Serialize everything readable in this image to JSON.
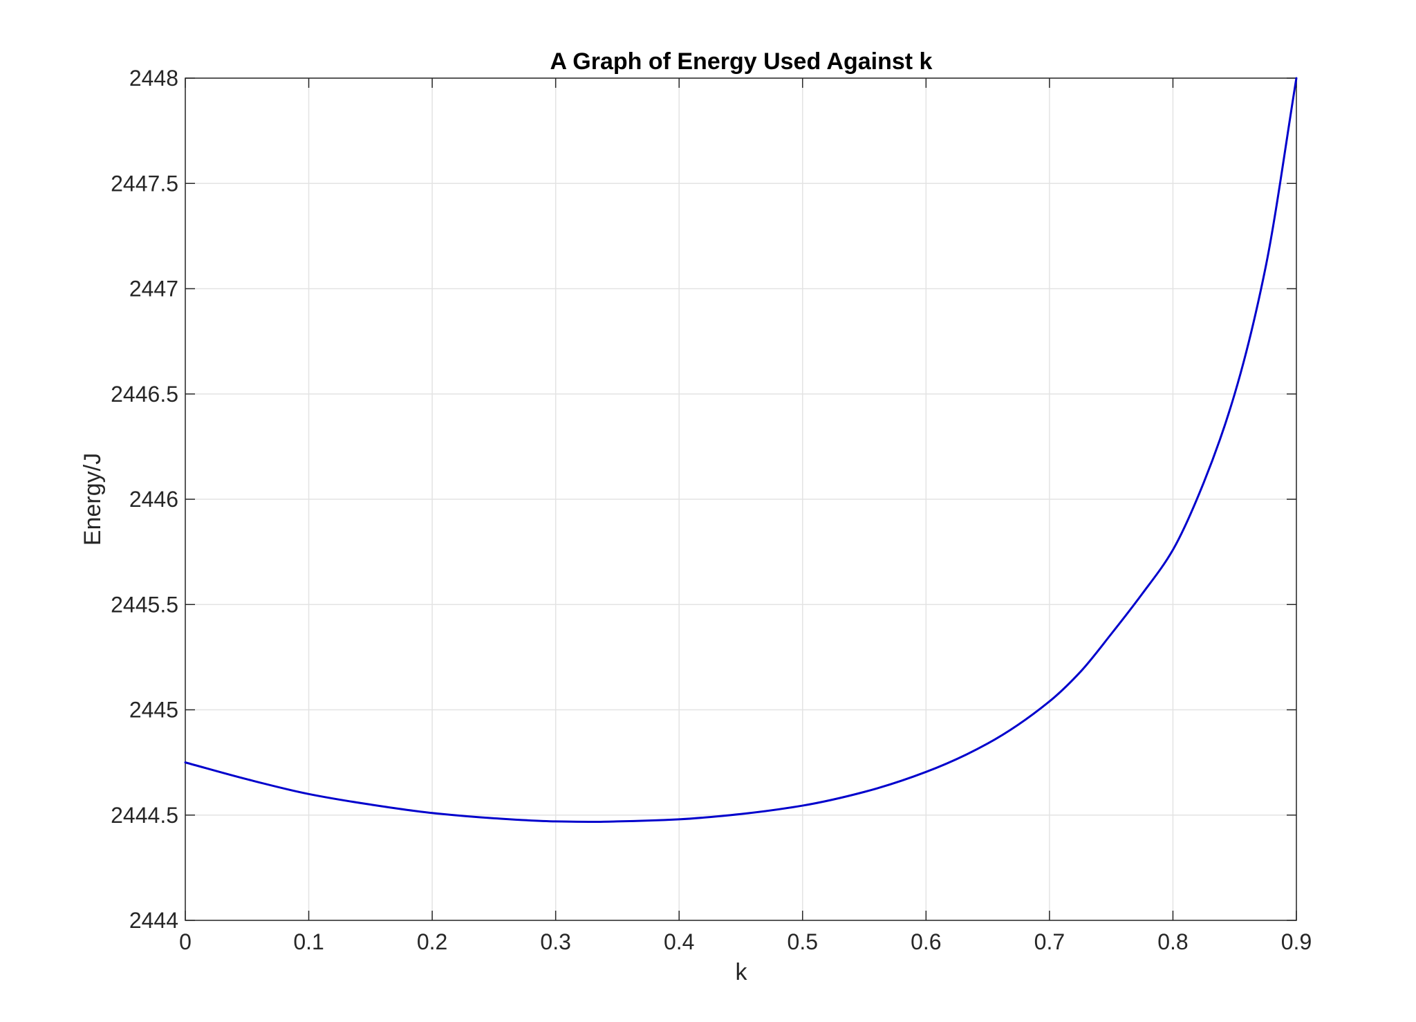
{
  "chart_data": {
    "type": "line",
    "title": "A Graph of Energy Used Against k",
    "xlabel": "k",
    "ylabel": "Energy/J",
    "xlim": [
      0,
      0.9
    ],
    "ylim": [
      2444,
      2448
    ],
    "grid": true,
    "x_ticks": [
      "0",
      "0.1",
      "0.2",
      "0.3",
      "0.4",
      "0.5",
      "0.6",
      "0.7",
      "0.8",
      "0.9"
    ],
    "y_ticks": [
      "2444",
      "2444.5",
      "2445",
      "2445.5",
      "2446",
      "2446.5",
      "2447",
      "2447.5",
      "2448"
    ],
    "series": [
      {
        "color": "#0000cc",
        "x": [
          0,
          0.05,
          0.1,
          0.15,
          0.2,
          0.25,
          0.3,
          0.33,
          0.35,
          0.4,
          0.45,
          0.5,
          0.55,
          0.6,
          0.65,
          0.7,
          0.725,
          0.75,
          0.775,
          0.8,
          0.825,
          0.85,
          0.875,
          0.9
        ],
        "y": [
          2444.75,
          2444.67,
          2444.6,
          2444.55,
          2444.51,
          2444.485,
          2444.47,
          2444.468,
          2444.47,
          2444.48,
          2444.505,
          2444.545,
          2444.61,
          2444.705,
          2444.84,
          2445.04,
          2445.18,
          2445.36,
          2445.55,
          2445.76,
          2446.08,
          2446.5,
          2447.1,
          2448.0
        ]
      }
    ]
  }
}
